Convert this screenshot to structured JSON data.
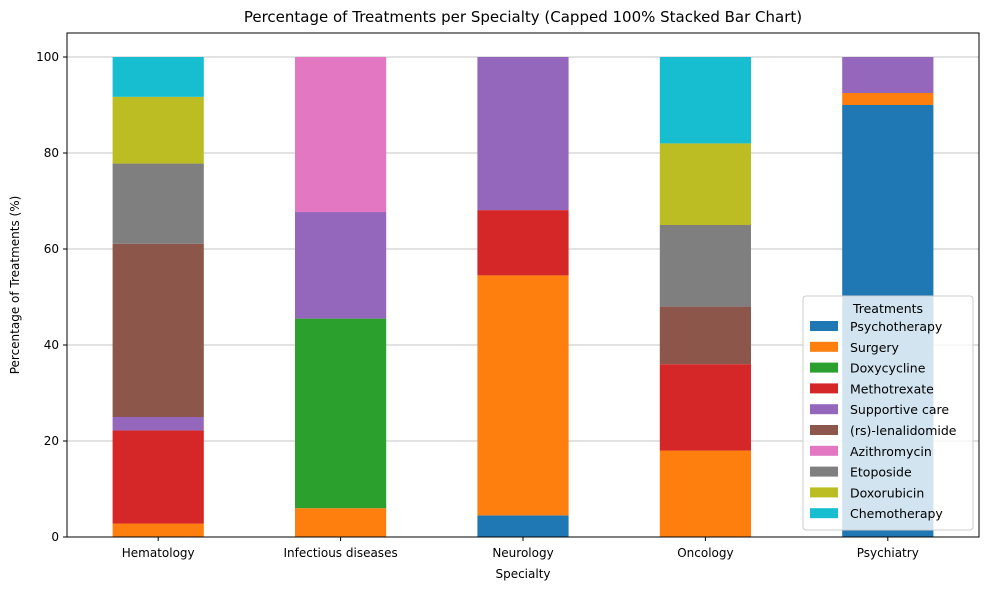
{
  "chart_data": {
    "type": "bar",
    "stacked": true,
    "title": "Percentage of Treatments per Specialty (Capped 100% Stacked Bar Chart)",
    "xlabel": "Specialty",
    "ylabel": "Percentage of Treatments (%)",
    "ylim": [
      0,
      105
    ],
    "yticks": [
      0,
      20,
      40,
      60,
      80,
      100
    ],
    "grid": "y",
    "legend_title": "Treatments",
    "legend_position": "lower-right",
    "categories": [
      "Hematology",
      "Infectious diseases",
      "Neurology",
      "Oncology",
      "Psychiatry"
    ],
    "series": [
      {
        "name": "Psychotherapy",
        "color": "#1f77b4",
        "values": [
          0,
          0,
          4.5,
          0,
          90.0
        ]
      },
      {
        "name": "Surgery",
        "color": "#ff7f0e",
        "values": [
          2.8,
          6.0,
          50.0,
          18.0,
          2.5
        ]
      },
      {
        "name": "Doxycycline",
        "color": "#2ca02c",
        "values": [
          0,
          39.5,
          0,
          0,
          0
        ]
      },
      {
        "name": "Methotrexate",
        "color": "#d62728",
        "values": [
          19.4,
          0,
          13.6,
          18.0,
          0
        ]
      },
      {
        "name": "Supportive care",
        "color": "#9467bd",
        "values": [
          2.8,
          22.2,
          31.9,
          0,
          7.5
        ]
      },
      {
        "name": "(rs)-lenalidomide",
        "color": "#8c564b",
        "values": [
          36.1,
          0,
          0,
          12.0,
          0
        ]
      },
      {
        "name": "Azithromycin",
        "color": "#e377c2",
        "values": [
          0,
          32.3,
          0,
          0,
          0
        ]
      },
      {
        "name": "Etoposide",
        "color": "#7f7f7f",
        "values": [
          16.7,
          0,
          0,
          17.0,
          0
        ]
      },
      {
        "name": "Doxorubicin",
        "color": "#bcbd22",
        "values": [
          13.9,
          0,
          0,
          17.0,
          0
        ]
      },
      {
        "name": "Chemotherapy",
        "color": "#17becf",
        "values": [
          8.3,
          0,
          0,
          18.0,
          0
        ]
      }
    ]
  }
}
